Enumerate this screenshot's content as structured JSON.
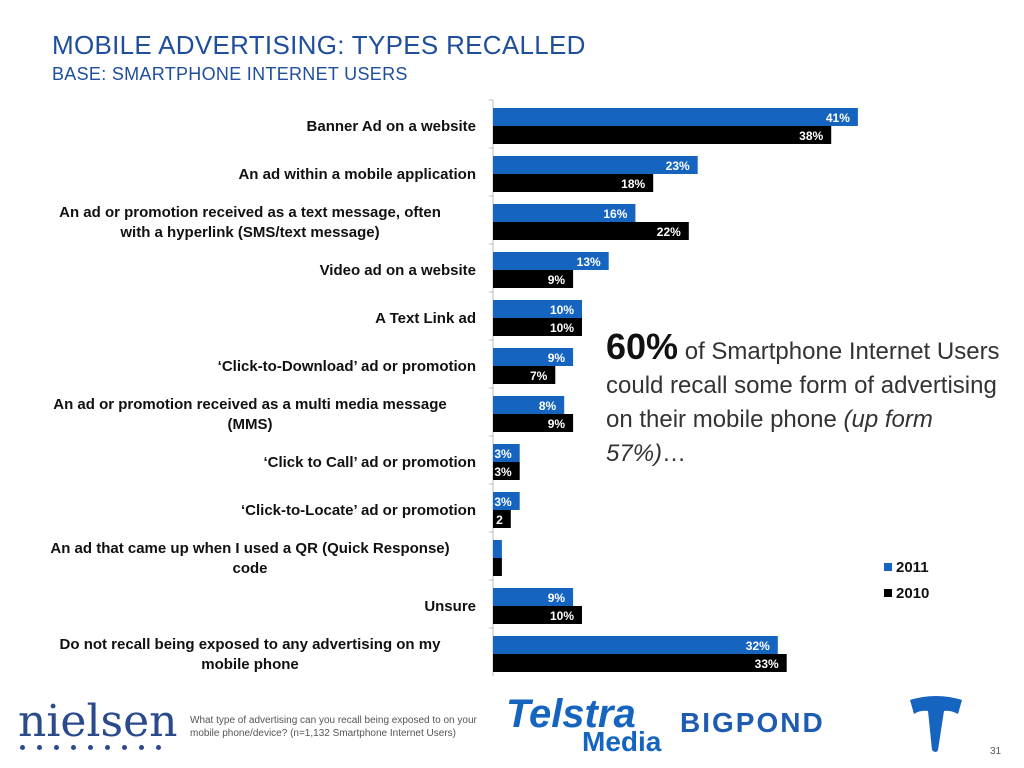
{
  "title": "MOBILE ADVERTISING: TYPES RECALLED",
  "subtitle": "BASE: SMARTPHONE INTERNET USERS",
  "chart_data": {
    "type": "bar",
    "orientation": "horizontal",
    "categories": [
      [
        "Banner Ad on a website"
      ],
      [
        "An ad within a mobile application"
      ],
      [
        "An ad or promotion received as a text message, often",
        "with a hyperlink (SMS/text message)"
      ],
      [
        "Video ad on a website"
      ],
      [
        "A Text Link ad"
      ],
      [
        "‘Click-to-Download’ ad or promotion"
      ],
      [
        "An ad or promotion received as a multi media message",
        "(MMS)"
      ],
      [
        "‘Click to Call’ ad or promotion"
      ],
      [
        "‘Click-to-Locate’ ad or promotion"
      ],
      [
        "An ad that came up when I used a QR (Quick Response)",
        "code"
      ],
      [
        "Unsure"
      ],
      [
        "Do not recall being exposed to any advertising on my",
        "mobile phone"
      ]
    ],
    "series": [
      {
        "name": "2011",
        "color": "#1565c0",
        "values": [
          41,
          23,
          16,
          13,
          10,
          9,
          8,
          3,
          3,
          1,
          9,
          32
        ],
        "labels": [
          "41%",
          "23%",
          "16%",
          "13%",
          "10%",
          "9%",
          "8%",
          "3%",
          "3%",
          "",
          "9%",
          "32%"
        ]
      },
      {
        "name": "2010",
        "color": "#000000",
        "values": [
          38,
          18,
          22,
          9,
          10,
          7,
          9,
          3,
          2,
          1,
          10,
          33
        ],
        "labels": [
          "38%",
          "18%",
          "22%",
          "9%",
          "10%",
          "7%",
          "9%",
          "3%",
          "2",
          "",
          "10%",
          "33%"
        ]
      }
    ],
    "legend_position": "right"
  },
  "callout": {
    "big": "60%",
    "text": " of Smartphone Internet Users could recall some form of advertising on their mobile phone ",
    "italic": "(up form 57%)",
    "tail": "…"
  },
  "question": "What type of advertising can you recall being exposed to on your mobile phone/device? (n=1,132 Smartphone Internet Users)",
  "logos": {
    "nielsen": "nielsen",
    "telstra": "Telstra",
    "telstra_media": "Media",
    "bigpond": "BIGPOND"
  },
  "page_number": "31"
}
